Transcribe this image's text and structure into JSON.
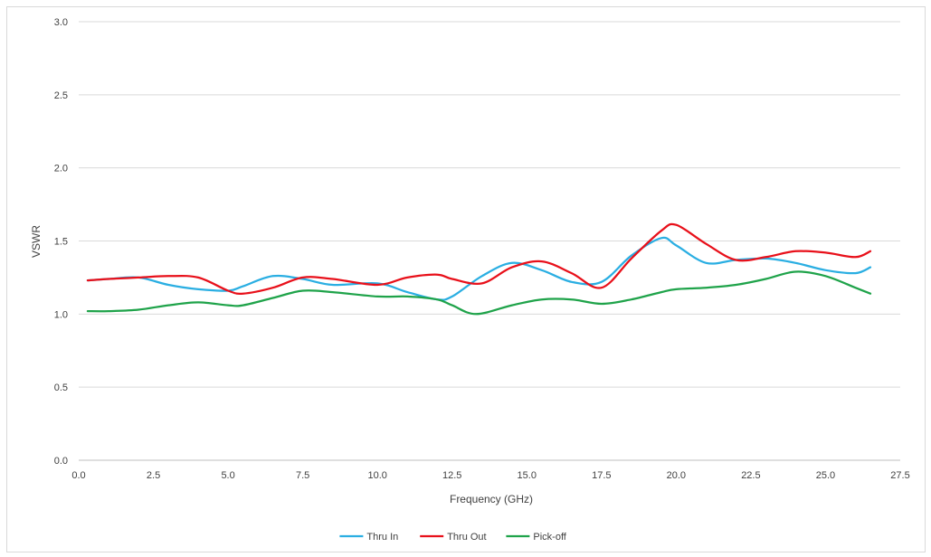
{
  "chart_data": {
    "type": "line",
    "title": "",
    "xlabel": "Frequency (GHz)",
    "ylabel": "VSWR",
    "xlim": [
      0,
      27.5
    ],
    "ylim": [
      0,
      3
    ],
    "x_ticks": [
      "0.0",
      "2.5",
      "5.0",
      "7.5",
      "10.0",
      "12.5",
      "15.0",
      "17.5",
      "20.0",
      "22.5",
      "25.0",
      "27.5"
    ],
    "y_ticks": [
      "0.0",
      "0.5",
      "1.0",
      "1.5",
      "2.0",
      "2.5",
      "3.0"
    ],
    "grid": "horizontal",
    "legend_position": "bottom",
    "series": [
      {
        "name": "Thru In",
        "color": "#2aaee2",
        "x": [
          0.3,
          1.0,
          2.0,
          3.0,
          4.0,
          5.0,
          5.5,
          6.5,
          7.5,
          8.5,
          10.0,
          11.0,
          12.0,
          12.5,
          13.5,
          14.5,
          15.5,
          16.5,
          17.5,
          18.5,
          19.5,
          20.0,
          21.0,
          22.0,
          23.0,
          24.0,
          25.0,
          26.0,
          26.5
        ],
        "values": [
          1.23,
          1.24,
          1.25,
          1.2,
          1.17,
          1.16,
          1.19,
          1.26,
          1.24,
          1.2,
          1.21,
          1.15,
          1.1,
          1.12,
          1.26,
          1.35,
          1.3,
          1.22,
          1.22,
          1.4,
          1.52,
          1.47,
          1.35,
          1.37,
          1.38,
          1.35,
          1.3,
          1.28,
          1.32
        ]
      },
      {
        "name": "Thru Out",
        "color": "#e8101a",
        "x": [
          0.3,
          1.0,
          2.0,
          3.0,
          4.0,
          5.0,
          5.5,
          6.5,
          7.5,
          8.5,
          10.0,
          11.0,
          12.0,
          12.5,
          13.5,
          14.5,
          15.5,
          16.5,
          17.5,
          18.5,
          19.5,
          20.0,
          21.0,
          22.0,
          23.0,
          24.0,
          25.0,
          26.0,
          26.5
        ],
        "values": [
          1.23,
          1.24,
          1.25,
          1.26,
          1.25,
          1.16,
          1.14,
          1.18,
          1.25,
          1.24,
          1.2,
          1.25,
          1.27,
          1.24,
          1.21,
          1.32,
          1.36,
          1.28,
          1.18,
          1.38,
          1.57,
          1.61,
          1.48,
          1.37,
          1.39,
          1.43,
          1.42,
          1.39,
          1.43
        ]
      },
      {
        "name": "Pick-off",
        "color": "#1fa34a",
        "x": [
          0.3,
          1.0,
          2.0,
          3.0,
          4.0,
          5.0,
          5.5,
          6.5,
          7.5,
          8.5,
          10.0,
          11.0,
          12.0,
          12.5,
          13.3,
          14.5,
          15.5,
          16.5,
          17.5,
          18.5,
          19.5,
          20.0,
          21.0,
          22.0,
          23.0,
          24.0,
          25.0,
          26.0,
          26.5
        ],
        "values": [
          1.02,
          1.02,
          1.03,
          1.06,
          1.08,
          1.06,
          1.06,
          1.11,
          1.16,
          1.15,
          1.12,
          1.12,
          1.1,
          1.06,
          1.0,
          1.06,
          1.1,
          1.1,
          1.07,
          1.1,
          1.15,
          1.17,
          1.18,
          1.2,
          1.24,
          1.29,
          1.26,
          1.18,
          1.14
        ]
      }
    ]
  }
}
